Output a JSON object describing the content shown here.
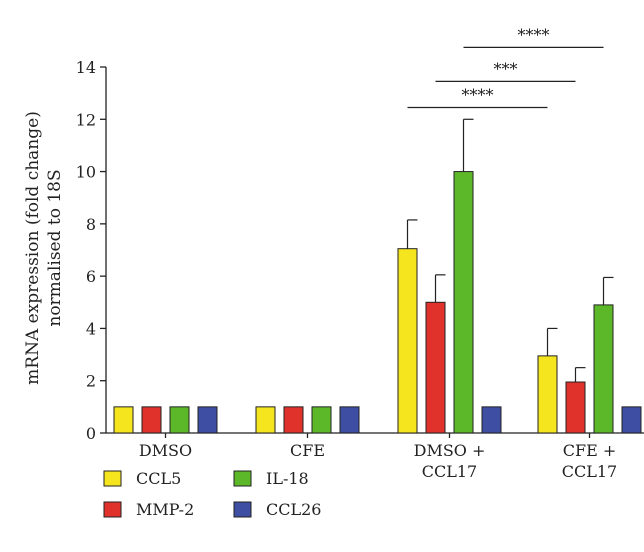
{
  "chart_data": {
    "type": "bar",
    "title": "",
    "ylabel_lines": [
      "mRNA expression (fold change)",
      "normalised to 18S"
    ],
    "xlabel": "",
    "ylim": [
      0,
      14
    ],
    "yticks": [
      0,
      2,
      4,
      6,
      8,
      10,
      12,
      14
    ],
    "categories": [
      {
        "lines": [
          "DMSO"
        ]
      },
      {
        "lines": [
          "CFE"
        ]
      },
      {
        "lines": [
          "DMSO +",
          "CCL17"
        ]
      },
      {
        "lines": [
          "CFE +",
          "CCL17"
        ]
      }
    ],
    "series": [
      {
        "name": "CCL5",
        "color": "#f5e51e",
        "values": [
          1,
          1,
          7.05,
          2.95
        ],
        "errors": [
          null,
          null,
          1.1,
          1.05
        ]
      },
      {
        "name": "MMP-2",
        "color": "#e0312a",
        "values": [
          1,
          1,
          5.0,
          1.95
        ],
        "errors": [
          null,
          null,
          1.05,
          0.55
        ]
      },
      {
        "name": "IL-18",
        "color": "#5cb829",
        "values": [
          1,
          1,
          10.0,
          4.9
        ],
        "errors": [
          null,
          null,
          2.0,
          1.05
        ]
      },
      {
        "name": "CCL26",
        "color": "#3e4fa3",
        "values": [
          1,
          1,
          1,
          1
        ],
        "errors": [
          null,
          null,
          null,
          null
        ]
      }
    ],
    "significance": [
      {
        "from": {
          "category": 2,
          "series": 0
        },
        "to": {
          "category": 3,
          "series": 0
        },
        "y": 12.45,
        "label": "****"
      },
      {
        "from": {
          "category": 2,
          "series": 1
        },
        "to": {
          "category": 3,
          "series": 1
        },
        "y": 13.45,
        "label": "***"
      },
      {
        "from": {
          "category": 2,
          "series": 2
        },
        "to": {
          "category": 3,
          "series": 2
        },
        "y": 14.75,
        "label": "****"
      }
    ],
    "legend": {
      "position": "bottom-left",
      "columns": 2
    }
  }
}
